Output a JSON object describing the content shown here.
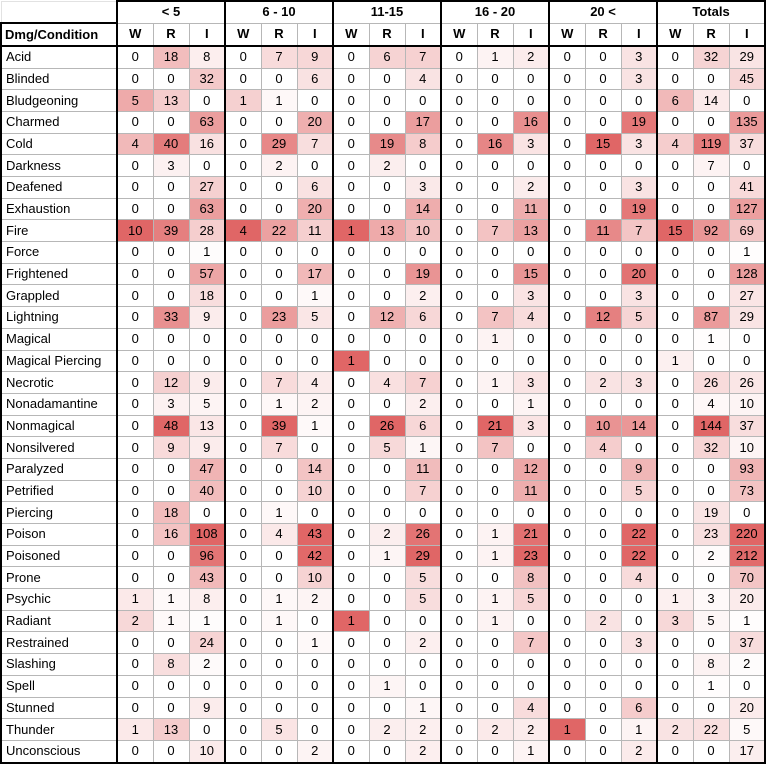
{
  "corner_label": "Dmg/Condition",
  "groups": [
    "< 5",
    "6 - 10",
    "11-15",
    "16 - 20",
    "20 <",
    "Totals"
  ],
  "subheaders": [
    "W",
    "R",
    "I"
  ],
  "heat_color": "#e06666",
  "rows": [
    {
      "label": "Acid",
      "values": [
        0,
        18,
        8,
        0,
        7,
        9,
        0,
        6,
        7,
        0,
        1,
        2,
        0,
        0,
        3,
        0,
        32,
        29
      ]
    },
    {
      "label": "Blinded",
      "values": [
        0,
        0,
        32,
        0,
        0,
        6,
        0,
        0,
        4,
        0,
        0,
        0,
        0,
        0,
        3,
        0,
        0,
        45
      ]
    },
    {
      "label": "Bludgeoning",
      "values": [
        5,
        13,
        0,
        1,
        1,
        0,
        0,
        0,
        0,
        0,
        0,
        0,
        0,
        0,
        0,
        6,
        14,
        0
      ]
    },
    {
      "label": "Charmed",
      "values": [
        0,
        0,
        63,
        0,
        0,
        20,
        0,
        0,
        17,
        0,
        0,
        16,
        0,
        0,
        19,
        0,
        0,
        135
      ]
    },
    {
      "label": "Cold",
      "values": [
        4,
        40,
        16,
        0,
        29,
        7,
        0,
        19,
        8,
        0,
        16,
        3,
        0,
        15,
        3,
        4,
        119,
        37
      ]
    },
    {
      "label": "Darkness",
      "values": [
        0,
        3,
        0,
        0,
        2,
        0,
        0,
        2,
        0,
        0,
        0,
        0,
        0,
        0,
        0,
        0,
        7,
        0
      ]
    },
    {
      "label": "Deafened",
      "values": [
        0,
        0,
        27,
        0,
        0,
        6,
        0,
        0,
        3,
        0,
        0,
        2,
        0,
        0,
        3,
        0,
        0,
        41
      ]
    },
    {
      "label": "Exhaustion",
      "values": [
        0,
        0,
        63,
        0,
        0,
        20,
        0,
        0,
        14,
        0,
        0,
        11,
        0,
        0,
        19,
        0,
        0,
        127
      ]
    },
    {
      "label": "Fire",
      "values": [
        10,
        39,
        28,
        4,
        22,
        11,
        1,
        13,
        10,
        0,
        7,
        13,
        0,
        11,
        7,
        15,
        92,
        69
      ]
    },
    {
      "label": "Force",
      "values": [
        0,
        0,
        1,
        0,
        0,
        0,
        0,
        0,
        0,
        0,
        0,
        0,
        0,
        0,
        0,
        0,
        0,
        1
      ]
    },
    {
      "label": "Frightened",
      "values": [
        0,
        0,
        57,
        0,
        0,
        17,
        0,
        0,
        19,
        0,
        0,
        15,
        0,
        0,
        20,
        0,
        0,
        128
      ]
    },
    {
      "label": "Grappled",
      "values": [
        0,
        0,
        18,
        0,
        0,
        1,
        0,
        0,
        2,
        0,
        0,
        3,
        0,
        0,
        3,
        0,
        0,
        27
      ]
    },
    {
      "label": "Lightning",
      "values": [
        0,
        33,
        9,
        0,
        23,
        5,
        0,
        12,
        6,
        0,
        7,
        4,
        0,
        12,
        5,
        0,
        87,
        29
      ]
    },
    {
      "label": "Magical",
      "values": [
        0,
        0,
        0,
        0,
        0,
        0,
        0,
        0,
        0,
        0,
        1,
        0,
        0,
        0,
        0,
        0,
        1,
        0
      ]
    },
    {
      "label": "Magical Piercing",
      "values": [
        0,
        0,
        0,
        0,
        0,
        0,
        1,
        0,
        0,
        0,
        0,
        0,
        0,
        0,
        0,
        1,
        0,
        0
      ]
    },
    {
      "label": "Necrotic",
      "values": [
        0,
        12,
        9,
        0,
        7,
        4,
        0,
        4,
        7,
        0,
        1,
        3,
        0,
        2,
        3,
        0,
        26,
        26
      ]
    },
    {
      "label": "Nonadamantine",
      "values": [
        0,
        3,
        5,
        0,
        1,
        2,
        0,
        0,
        2,
        0,
        0,
        1,
        0,
        0,
        0,
        0,
        4,
        10
      ]
    },
    {
      "label": "Nonmagical",
      "values": [
        0,
        48,
        13,
        0,
        39,
        1,
        0,
        26,
        6,
        0,
        21,
        3,
        0,
        10,
        14,
        0,
        144,
        37
      ]
    },
    {
      "label": "Nonsilvered",
      "values": [
        0,
        9,
        9,
        0,
        7,
        0,
        0,
        5,
        1,
        0,
        7,
        0,
        0,
        4,
        0,
        0,
        32,
        10
      ]
    },
    {
      "label": "Paralyzed",
      "values": [
        0,
        0,
        47,
        0,
        0,
        14,
        0,
        0,
        11,
        0,
        0,
        12,
        0,
        0,
        9,
        0,
        0,
        93
      ]
    },
    {
      "label": "Petrified",
      "values": [
        0,
        0,
        40,
        0,
        0,
        10,
        0,
        0,
        7,
        0,
        0,
        11,
        0,
        0,
        5,
        0,
        0,
        73
      ]
    },
    {
      "label": "Piercing",
      "values": [
        0,
        18,
        0,
        0,
        1,
        0,
        0,
        0,
        0,
        0,
        0,
        0,
        0,
        0,
        0,
        0,
        19,
        0
      ]
    },
    {
      "label": "Poison",
      "values": [
        0,
        16,
        108,
        0,
        4,
        43,
        0,
        2,
        26,
        0,
        1,
        21,
        0,
        0,
        22,
        0,
        23,
        220
      ]
    },
    {
      "label": "Poisoned",
      "values": [
        0,
        0,
        96,
        0,
        0,
        42,
        0,
        1,
        29,
        0,
        1,
        23,
        0,
        0,
        22,
        0,
        2,
        212
      ]
    },
    {
      "label": "Prone",
      "values": [
        0,
        0,
        43,
        0,
        0,
        10,
        0,
        0,
        5,
        0,
        0,
        8,
        0,
        0,
        4,
        0,
        0,
        70
      ]
    },
    {
      "label": "Psychic",
      "values": [
        1,
        1,
        8,
        0,
        1,
        2,
        0,
        0,
        5,
        0,
        1,
        5,
        0,
        0,
        0,
        1,
        3,
        20
      ]
    },
    {
      "label": "Radiant",
      "values": [
        2,
        1,
        1,
        0,
        1,
        0,
        1,
        0,
        0,
        0,
        1,
        0,
        0,
        2,
        0,
        3,
        5,
        1
      ]
    },
    {
      "label": "Restrained",
      "values": [
        0,
        0,
        24,
        0,
        0,
        1,
        0,
        0,
        2,
        0,
        0,
        7,
        0,
        0,
        3,
        0,
        0,
        37
      ]
    },
    {
      "label": "Slashing",
      "values": [
        0,
        8,
        2,
        0,
        0,
        0,
        0,
        0,
        0,
        0,
        0,
        0,
        0,
        0,
        0,
        0,
        8,
        2
      ]
    },
    {
      "label": "Spell",
      "values": [
        0,
        0,
        0,
        0,
        0,
        0,
        0,
        1,
        0,
        0,
        0,
        0,
        0,
        0,
        0,
        0,
        1,
        0
      ]
    },
    {
      "label": "Stunned",
      "values": [
        0,
        0,
        9,
        0,
        0,
        0,
        0,
        0,
        1,
        0,
        0,
        4,
        0,
        0,
        6,
        0,
        0,
        20
      ]
    },
    {
      "label": "Thunder",
      "values": [
        1,
        13,
        0,
        0,
        5,
        0,
        0,
        2,
        2,
        0,
        2,
        2,
        1,
        0,
        1,
        2,
        22,
        5
      ]
    },
    {
      "label": "Unconscious",
      "values": [
        0,
        0,
        10,
        0,
        0,
        2,
        0,
        0,
        2,
        0,
        0,
        1,
        0,
        0,
        2,
        0,
        0,
        17
      ]
    }
  ]
}
